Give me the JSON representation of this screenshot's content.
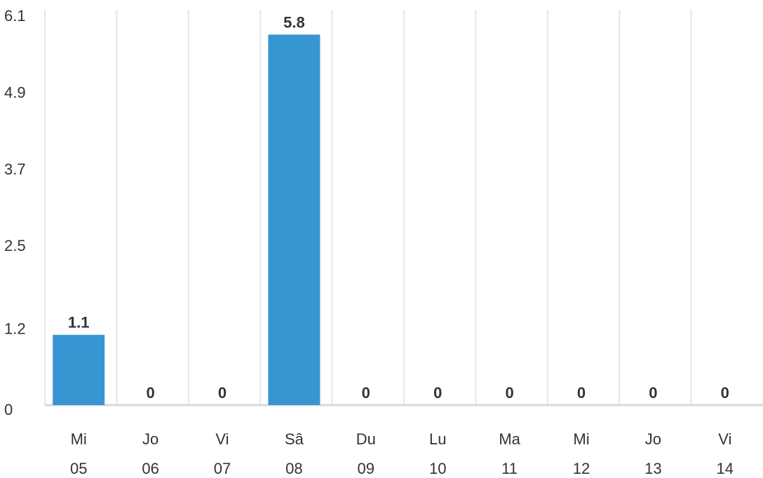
{
  "chart_data": {
    "type": "bar",
    "categories": [
      {
        "day": "Mi",
        "date": "05"
      },
      {
        "day": "Jo",
        "date": "06"
      },
      {
        "day": "Vi",
        "date": "07"
      },
      {
        "day": "Sâ",
        "date": "08"
      },
      {
        "day": "Du",
        "date": "09"
      },
      {
        "day": "Lu",
        "date": "10"
      },
      {
        "day": "Ma",
        "date": "11"
      },
      {
        "day": "Mi",
        "date": "12"
      },
      {
        "day": "Jo",
        "date": "13"
      },
      {
        "day": "Vi",
        "date": "14"
      }
    ],
    "values": [
      1.1,
      0,
      0,
      5.8,
      0,
      0,
      0,
      0,
      0,
      0
    ],
    "value_labels": [
      "1.1",
      "0",
      "0",
      "5.8",
      "0",
      "0",
      "0",
      "0",
      "0",
      "0"
    ],
    "y_ticks": [
      "0",
      "1.2",
      "2.5",
      "3.7",
      "4.9",
      "6.1"
    ],
    "ylim": [
      0,
      6.1
    ],
    "title": "",
    "xlabel": "",
    "ylabel": "",
    "grid": "vertical",
    "colors": {
      "bar": "#3796d2",
      "grid": "#e6e6e6",
      "axis": "#d9d9d9",
      "text": "#333333"
    }
  }
}
